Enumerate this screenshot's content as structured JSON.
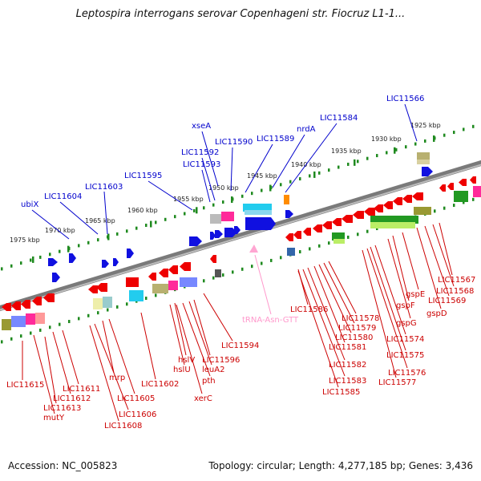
{
  "title": "Leptospira interrogans serovar Copenhageni str. Fiocruz L1-1...",
  "accession": "Accession: NC_005823",
  "summary": "Topology: circular; Length: 4,277,185 bp; Genes: 3,436",
  "colors": {
    "forward_label": "#0000cc",
    "reverse_label": "#cc0000",
    "trna_label": "#ff99cc",
    "tick": "#1f8a1f",
    "axis": "#8a8a8a"
  },
  "kbp_ticks": [
    "1975 kbp",
    "1970 kbp",
    "1965 kbp",
    "1960 kbp",
    "1955 kbp",
    "1950 kbp",
    "1945 kbp",
    "1940 kbp",
    "1935 kbp",
    "1930 kbp",
    "1925 kbp"
  ],
  "forward_labels": [
    "ubiX",
    "LIC11604",
    "LIC11603",
    "LIC11595",
    "LIC11593",
    "LIC11592",
    "xseA",
    "LIC11590",
    "LIC11589",
    "nrdA",
    "LIC11584",
    "LIC11566"
  ],
  "reverse_labels": [
    "LIC11615",
    "LIC11613",
    "mutY",
    "LIC11612",
    "LIC11611",
    "LIC11606",
    "LIC11608",
    "mrp",
    "LIC11605",
    "LIC11602",
    "hslV",
    "hslU",
    "LIC11596",
    "leuA2",
    "pth",
    "xerC",
    "LIC11594",
    "LIC11586",
    "LIC11578",
    "LIC11579",
    "LIC11580",
    "LIC11581",
    "LIC11582",
    "LIC11583",
    "LIC11585",
    "LIC11574",
    "LIC11575",
    "LIC11576",
    "LIC11577",
    "gspG",
    "gspF",
    "gspE",
    "gspD",
    "LIC11569",
    "LIC11568",
    "LIC11567"
  ],
  "trna_label": "tRNA-Asn-GTT"
}
